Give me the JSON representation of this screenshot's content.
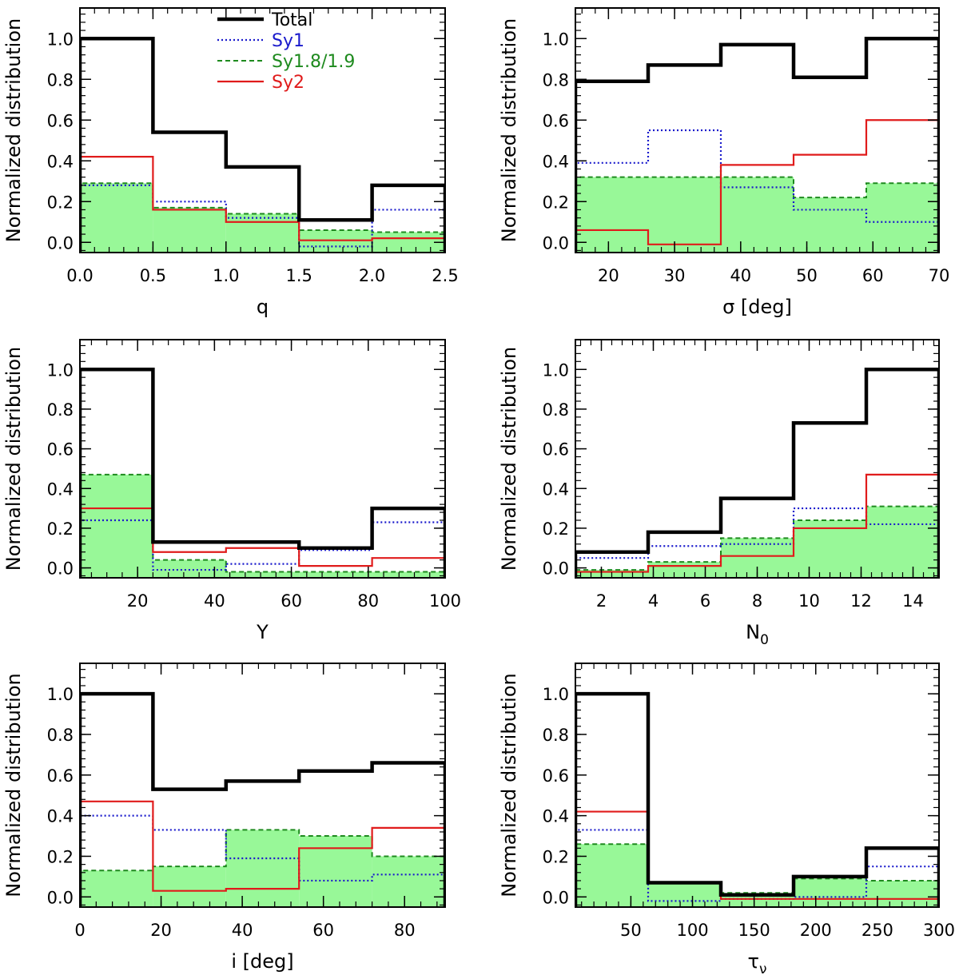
{
  "legend": [
    {
      "name": "Total",
      "color": "#000000",
      "style": "solid-thick"
    },
    {
      "name": "Sy1",
      "color": "#1a1acc",
      "style": "dotted"
    },
    {
      "name": "Sy1.8/1.9",
      "color": "#1e8a1e",
      "style": "dashed"
    },
    {
      "name": "Sy2",
      "color": "#e01b1b",
      "style": "solid"
    }
  ],
  "colors": {
    "fill": "#98f898",
    "total": "#000000",
    "sy1": "#1a1acc",
    "sy18": "#1e8a1e",
    "sy2": "#e01b1b"
  },
  "chart_data": [
    {
      "type": "histogram",
      "xlabel": "q",
      "ylabel": "Normalized distribution",
      "xlim": [
        0,
        2.5
      ],
      "ylim": [
        -0.05,
        1.15
      ],
      "xticks": [
        0.0,
        0.5,
        1.0,
        1.5,
        2.0,
        2.5
      ],
      "xtick_labels": [
        "0.0",
        "0.5",
        "1.0",
        "1.5",
        "2.0",
        "2.5"
      ],
      "yticks": [
        0.0,
        0.2,
        0.4,
        0.6,
        0.8,
        1.0
      ],
      "ytick_labels": [
        "0.0",
        "0.2",
        "0.4",
        "0.6",
        "0.8",
        "1.0"
      ],
      "edges": [
        0,
        0.5,
        1.0,
        1.5,
        2.0,
        2.5
      ],
      "legend_shown": true,
      "legend_placement": "top-center",
      "series": [
        {
          "name": "Total",
          "values": [
            1.0,
            0.54,
            0.37,
            0.11,
            0.28
          ]
        },
        {
          "name": "Sy1",
          "values": [
            0.28,
            0.2,
            0.12,
            -0.02,
            0.16
          ]
        },
        {
          "name": "Sy1.8/1.9",
          "values": [
            0.29,
            0.17,
            0.14,
            0.06,
            0.05
          ]
        },
        {
          "name": "Sy2",
          "values": [
            0.42,
            0.16,
            0.1,
            0.01,
            0.02
          ]
        }
      ]
    },
    {
      "type": "histogram",
      "xlabel": "σ [deg]",
      "ylabel": "Normalized distribution",
      "xlim": [
        15,
        70
      ],
      "ylim": [
        -0.05,
        1.15
      ],
      "xticks": [
        20,
        30,
        40,
        50,
        60,
        70
      ],
      "xtick_labels": [
        "20",
        "30",
        "40",
        "50",
        "60",
        "70"
      ],
      "yticks": [
        0.0,
        0.2,
        0.4,
        0.6,
        0.8,
        1.0
      ],
      "ytick_labels": [
        "0.0",
        "0.2",
        "0.4",
        "0.6",
        "0.8",
        "1.0"
      ],
      "edges": [
        15,
        26,
        37,
        48,
        59,
        70
      ],
      "legend_shown": false,
      "series": [
        {
          "name": "Total",
          "values": [
            0.79,
            0.87,
            0.97,
            0.81,
            1.0
          ]
        },
        {
          "name": "Sy1",
          "values": [
            0.39,
            0.55,
            0.27,
            0.16,
            0.1
          ]
        },
        {
          "name": "Sy1.8/1.9",
          "values": [
            0.32,
            0.32,
            0.32,
            0.22,
            0.29
          ]
        },
        {
          "name": "Sy2",
          "values": [
            0.06,
            -0.01,
            0.38,
            0.43,
            0.6
          ]
        }
      ]
    },
    {
      "type": "histogram",
      "xlabel": "Y",
      "ylabel": "Normalized distribution",
      "xlim": [
        5,
        100
      ],
      "ylim": [
        -0.05,
        1.15
      ],
      "xticks": [
        20,
        40,
        60,
        80,
        100
      ],
      "xtick_labels": [
        "20",
        "40",
        "60",
        "80",
        "100"
      ],
      "yticks": [
        0.0,
        0.2,
        0.4,
        0.6,
        0.8,
        1.0
      ],
      "ytick_labels": [
        "0.0",
        "0.2",
        "0.4",
        "0.6",
        "0.8",
        "1.0"
      ],
      "edges": [
        5,
        24,
        43,
        62,
        81,
        100
      ],
      "legend_shown": false,
      "series": [
        {
          "name": "Total",
          "values": [
            1.0,
            0.13,
            0.13,
            0.1,
            0.3
          ]
        },
        {
          "name": "Sy1",
          "values": [
            0.24,
            -0.01,
            0.02,
            0.09,
            0.23
          ]
        },
        {
          "name": "Sy1.8/1.9",
          "values": [
            0.47,
            0.04,
            -0.02,
            -0.02,
            -0.02
          ]
        },
        {
          "name": "Sy2",
          "values": [
            0.3,
            0.08,
            0.1,
            0.01,
            0.05
          ]
        }
      ]
    },
    {
      "type": "histogram",
      "xlabel": "N0",
      "xlabel_main": "N",
      "xlabel_sub": "0",
      "ylabel": "Normalized distribution",
      "xlim": [
        1,
        15
      ],
      "ylim": [
        -0.05,
        1.15
      ],
      "xticks": [
        2,
        4,
        6,
        8,
        10,
        12,
        14
      ],
      "xtick_labels": [
        "2",
        "4",
        "6",
        "8",
        "10",
        "12",
        "14"
      ],
      "yticks": [
        0.0,
        0.2,
        0.4,
        0.6,
        0.8,
        1.0
      ],
      "ytick_labels": [
        "0.0",
        "0.2",
        "0.4",
        "0.6",
        "0.8",
        "1.0"
      ],
      "edges": [
        1,
        3.8,
        6.6,
        9.4,
        12.2,
        15
      ],
      "legend_shown": false,
      "series": [
        {
          "name": "Total",
          "values": [
            0.08,
            0.18,
            0.35,
            0.73,
            1.0
          ]
        },
        {
          "name": "Sy1",
          "values": [
            0.05,
            0.11,
            0.12,
            0.3,
            0.22
          ]
        },
        {
          "name": "Sy1.8/1.9",
          "values": [
            -0.01,
            0.03,
            0.15,
            0.24,
            0.31
          ]
        },
        {
          "name": "Sy2",
          "values": [
            -0.02,
            0.01,
            0.06,
            0.2,
            0.47
          ]
        }
      ]
    },
    {
      "type": "histogram",
      "xlabel": "i [deg]",
      "ylabel": "Normalized distribution",
      "xlim": [
        0,
        90
      ],
      "ylim": [
        -0.05,
        1.15
      ],
      "xticks": [
        0,
        20,
        40,
        60,
        80
      ],
      "xtick_labels": [
        "0",
        "20",
        "40",
        "60",
        "80"
      ],
      "yticks": [
        0.0,
        0.2,
        0.4,
        0.6,
        0.8,
        1.0
      ],
      "ytick_labels": [
        "0.0",
        "0.2",
        "0.4",
        "0.6",
        "0.8",
        "1.0"
      ],
      "edges": [
        0,
        18,
        36,
        54,
        72,
        90
      ],
      "legend_shown": false,
      "series": [
        {
          "name": "Total",
          "values": [
            1.0,
            0.53,
            0.57,
            0.62,
            0.66
          ]
        },
        {
          "name": "Sy1",
          "values": [
            0.4,
            0.33,
            0.19,
            0.08,
            0.11
          ]
        },
        {
          "name": "Sy1.8/1.9",
          "values": [
            0.13,
            0.15,
            0.33,
            0.3,
            0.2
          ]
        },
        {
          "name": "Sy2",
          "values": [
            0.47,
            0.03,
            0.04,
            0.24,
            0.34
          ]
        }
      ]
    },
    {
      "type": "histogram",
      "xlabel": "τν",
      "xlabel_main": "τ",
      "xlabel_sub": "ν",
      "ylabel": "Normalized distribution",
      "xlim": [
        5,
        300
      ],
      "ylim": [
        -0.05,
        1.15
      ],
      "xticks": [
        50,
        100,
        150,
        200,
        250,
        300
      ],
      "xtick_labels": [
        "50",
        "100",
        "150",
        "200",
        "250",
        "300"
      ],
      "yticks": [
        0.0,
        0.2,
        0.4,
        0.6,
        0.8,
        1.0
      ],
      "ytick_labels": [
        "0.0",
        "0.2",
        "0.4",
        "0.6",
        "0.8",
        "1.0"
      ],
      "edges": [
        5,
        64,
        123,
        182,
        241,
        300
      ],
      "legend_shown": false,
      "series": [
        {
          "name": "Total",
          "values": [
            1.0,
            0.07,
            0.01,
            0.1,
            0.24
          ]
        },
        {
          "name": "Sy1",
          "values": [
            0.33,
            -0.02,
            -0.01,
            0.0,
            0.15
          ]
        },
        {
          "name": "Sy1.8/1.9",
          "values": [
            0.26,
            0.07,
            0.02,
            0.09,
            0.08
          ]
        },
        {
          "name": "Sy2",
          "values": [
            0.42,
            0.07,
            -0.01,
            -0.01,
            -0.01
          ]
        }
      ]
    }
  ]
}
